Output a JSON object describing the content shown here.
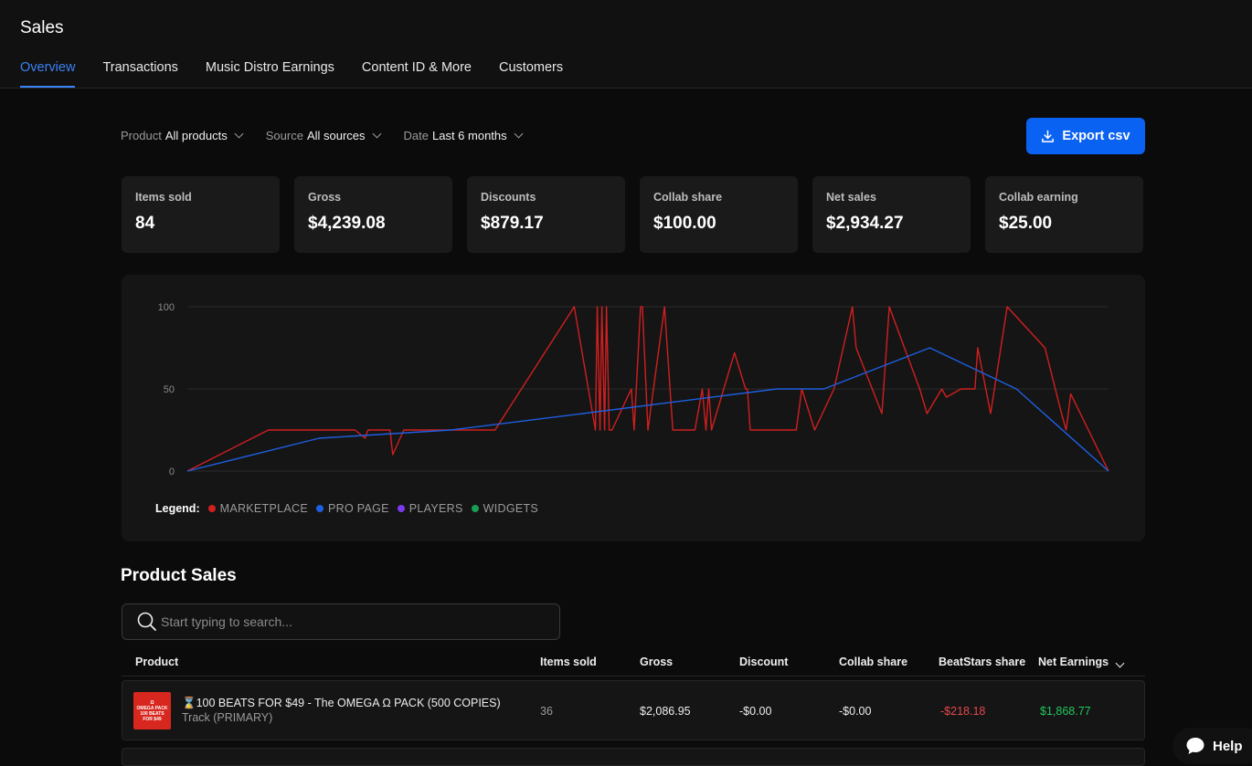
{
  "header": {
    "title": "Sales",
    "tabs": [
      {
        "label": "Overview"
      },
      {
        "label": "Transactions"
      },
      {
        "label": "Music Distro Earnings"
      },
      {
        "label": "Content ID & More"
      },
      {
        "label": "Customers"
      }
    ],
    "active_tab": "Overview"
  },
  "filters": [
    {
      "label": "Product",
      "value": "All products"
    },
    {
      "label": "Source",
      "value": "All sources"
    },
    {
      "label": "Date",
      "value": "Last 6 months"
    }
  ],
  "export_label": "Export csv",
  "accent_color": "#0a62f2",
  "stats": [
    {
      "label": "Items sold",
      "value": "84"
    },
    {
      "label": "Gross",
      "value": "$4,239.08"
    },
    {
      "label": "Discounts",
      "value": "$879.17"
    },
    {
      "label": "Collab share",
      "value": "$100.00"
    },
    {
      "label": "Net sales",
      "value": "$2,934.27"
    },
    {
      "label": "Collab earning",
      "value": "$25.00"
    }
  ],
  "chart_data": {
    "type": "line",
    "ylim": [
      0,
      100
    ],
    "yticks": [
      "100",
      "50",
      "0"
    ],
    "grid": true,
    "legend_title": "Legend:",
    "legend_position": "bottom-left",
    "legend": [
      {
        "name": "MARKETPLACE",
        "color": "#d11f1f"
      },
      {
        "name": "PRO PAGE",
        "color": "#1d5fe0"
      },
      {
        "name": "PLAYERS",
        "color": "#7c3aed"
      },
      {
        "name": "WIDGETS",
        "color": "#1a9d55"
      }
    ],
    "series": [
      {
        "name": "MARKETPLACE",
        "color": "#d11f1f",
        "points": [
          [
            0,
            0
          ],
          [
            8.8,
            25
          ],
          [
            18.2,
            25
          ],
          [
            19.3,
            20
          ],
          [
            19.6,
            25
          ],
          [
            22,
            25
          ],
          [
            22.3,
            10
          ],
          [
            23.5,
            25
          ],
          [
            33.4,
            25
          ],
          [
            42,
            100
          ],
          [
            44.3,
            25
          ],
          [
            44.5,
            100
          ],
          [
            44.8,
            25
          ],
          [
            45,
            100
          ],
          [
            45.3,
            25
          ],
          [
            45.5,
            100
          ],
          [
            45.8,
            25
          ],
          [
            46.1,
            25
          ],
          [
            48.2,
            50
          ],
          [
            48.5,
            25
          ],
          [
            49.2,
            100
          ],
          [
            49.4,
            100
          ],
          [
            50,
            25
          ],
          [
            51.8,
            100
          ],
          [
            52.7,
            25
          ],
          [
            55.1,
            25
          ],
          [
            55.9,
            50
          ],
          [
            56.3,
            25
          ],
          [
            56.6,
            50
          ],
          [
            56.9,
            25
          ],
          [
            59.4,
            72
          ],
          [
            60.6,
            50
          ],
          [
            60.8,
            50
          ],
          [
            61.1,
            25
          ],
          [
            66.1,
            25
          ],
          [
            66.7,
            50
          ],
          [
            68.1,
            25
          ],
          [
            70.2,
            50
          ],
          [
            72.2,
            100
          ],
          [
            72.6,
            75
          ],
          [
            75.4,
            35
          ],
          [
            76.2,
            100
          ],
          [
            79.5,
            50
          ],
          [
            80.3,
            35
          ],
          [
            81.9,
            50
          ],
          [
            82.4,
            45
          ],
          [
            84,
            50
          ],
          [
            85.5,
            50
          ],
          [
            85.8,
            75
          ],
          [
            87.2,
            35
          ],
          [
            89,
            100
          ],
          [
            93.1,
            75
          ],
          [
            94.9,
            35
          ],
          [
            95.4,
            25
          ],
          [
            95.9,
            47
          ],
          [
            100,
            0
          ]
        ]
      },
      {
        "name": "PRO PAGE",
        "color": "#1d5fe0",
        "points": [
          [
            0,
            0
          ],
          [
            14.3,
            20
          ],
          [
            28.6,
            25
          ],
          [
            42.9,
            35
          ],
          [
            64,
            50
          ],
          [
            69.1,
            50
          ],
          [
            80.6,
            75
          ],
          [
            90,
            50
          ],
          [
            100,
            0
          ]
        ]
      }
    ]
  },
  "product_sales": {
    "title": "Product Sales",
    "search_placeholder": "Start typing to search...",
    "columns": [
      "Product",
      "Items sold",
      "Gross",
      "Discount",
      "Collab share",
      "BeatStars share",
      "Net Earnings"
    ],
    "rows": [
      {
        "thumb_text": [
          "Ω",
          "OMEGA PACK",
          "100 BEATS",
          "FOR $49"
        ],
        "name": "⌛100 BEATS FOR $49 - The OMEGA Ω PACK (500 COPIES)",
        "type": "Track (PRIMARY)",
        "items_sold": "36",
        "gross": "$2,086.95",
        "discount": "-$0.00",
        "collab_share": "-$0.00",
        "beatstars_share": "-$218.18",
        "net_earnings": "$1,868.77"
      }
    ]
  },
  "help_label": "Help"
}
